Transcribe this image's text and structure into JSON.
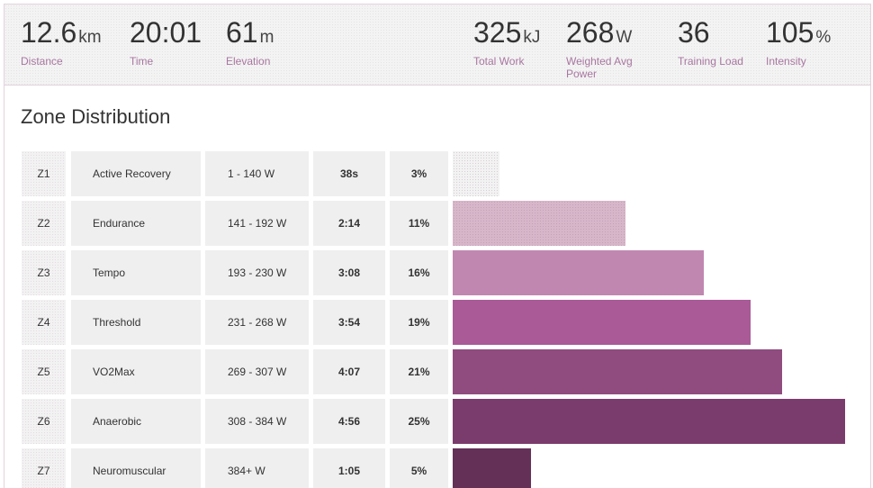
{
  "summary": [
    {
      "value": "12.6",
      "unit": "km",
      "label": "Distance"
    },
    {
      "value": "20:01",
      "unit": "",
      "label": "Time"
    },
    {
      "value": "61",
      "unit": "m",
      "label": "Elevation"
    },
    {
      "value": "325",
      "unit": "kJ",
      "label": "Total Work"
    },
    {
      "value": "268",
      "unit": "W",
      "label": "Weighted Avg Power"
    },
    {
      "value": "36",
      "unit": "",
      "label": "Training Load"
    },
    {
      "value": "105",
      "unit": "%",
      "label": "Intensity"
    }
  ],
  "zone_distribution": {
    "title": "Zone Distribution",
    "zones": [
      {
        "zone": "Z1",
        "name": "Active Recovery",
        "range": "1 - 140 W",
        "time": "38s",
        "percent": "3%",
        "share": 3,
        "color": "#f2f2f2"
      },
      {
        "zone": "Z2",
        "name": "Endurance",
        "range": "141 - 192 W",
        "time": "2:14",
        "percent": "11%",
        "share": 11,
        "color": "#d8b6ca"
      },
      {
        "zone": "Z3",
        "name": "Tempo",
        "range": "193 - 230 W",
        "time": "3:08",
        "percent": "16%",
        "share": 16,
        "color": "#c087b1"
      },
      {
        "zone": "Z4",
        "name": "Threshold",
        "range": "231 - 268 W",
        "time": "3:54",
        "percent": "19%",
        "share": 19,
        "color": "#a95a97"
      },
      {
        "zone": "Z5",
        "name": "VO2Max",
        "range": "269 - 307 W",
        "time": "4:07",
        "percent": "21%",
        "share": 21,
        "color": "#904c7f"
      },
      {
        "zone": "Z6",
        "name": "Anaerobic",
        "range": "308 - 384 W",
        "time": "4:56",
        "percent": "25%",
        "share": 25,
        "color": "#7a3c6c"
      },
      {
        "zone": "Z7",
        "name": "Neuromuscular",
        "range": "384+ W",
        "time": "1:05",
        "percent": "5%",
        "share": 5,
        "color": "#643057"
      }
    ]
  }
}
